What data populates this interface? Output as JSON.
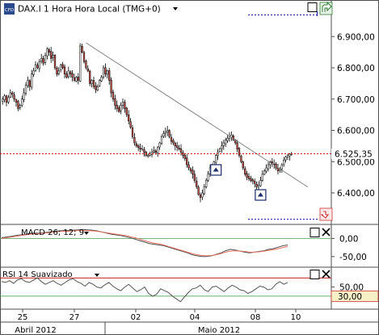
{
  "header": {
    "badge": "CFD",
    "title": "DAX.I 1 Hora Hora Local (TMG+0)",
    "dropdown_icon": "triangle-down-icon"
  },
  "colors": {
    "border": "#4d4d4d",
    "up_candle": "#ffffff",
    "down_candle": "#c0504d",
    "wick": "#000000",
    "price_line": "#cc0000",
    "trendline": "#808080",
    "macd_line": "#4f4f4f",
    "macd_signal": "#e8705f",
    "macd_zero": "#66aa66",
    "rsi_line": "#555555",
    "rsi_upper": "#c00000",
    "rsi_lower": "#339933",
    "label_bg": "#cc3333",
    "watermark": "#2e7d32",
    "axis_text": "#000000"
  },
  "chart_data": [
    {
      "type": "candlestick",
      "panel": "price",
      "title": "DAX.I 1 Hora Hora Local (TMG+0)",
      "ylim": [
        6320,
        6960
      ],
      "yticks": [
        6400,
        6500,
        6600,
        6700,
        6800,
        6900
      ],
      "ytick_labels": [
        "6.400,00",
        "6.500,00",
        "6.600,00",
        "6.700,00",
        "6.800,00",
        "6.900,00"
      ],
      "last_price": 6525.35,
      "last_price_label": "6.525,35",
      "bar_count": 150,
      "closes": [
        6700,
        6710,
        6690,
        6705,
        6720,
        6715,
        6700,
        6690,
        6670,
        6680,
        6700,
        6720,
        6745,
        6760,
        6740,
        6780,
        6790,
        6810,
        6800,
        6820,
        6830,
        6815,
        6840,
        6860,
        6850,
        6830,
        6840,
        6800,
        6780,
        6790,
        6810,
        6800,
        6780,
        6770,
        6790,
        6780,
        6770,
        6760,
        6770,
        6760,
        6870,
        6850,
        6820,
        6800,
        6790,
        6750,
        6760,
        6740,
        6730,
        6740,
        6760,
        6770,
        6800,
        6780,
        6790,
        6760,
        6720,
        6700,
        6680,
        6670,
        6660,
        6680,
        6690,
        6670,
        6650,
        6630,
        6610,
        6580,
        6560,
        6550,
        6545,
        6540,
        6540,
        6530,
        6520,
        6520,
        6525,
        6530,
        6535,
        6530,
        6545,
        6560,
        6580,
        6590,
        6595,
        6600,
        6580,
        6565,
        6560,
        6550,
        6545,
        6540,
        6530,
        6520,
        6510,
        6490,
        6480,
        6470,
        6460,
        6440,
        6420,
        6395,
        6385,
        6400,
        6420,
        6440,
        6460,
        6480,
        6490,
        6500,
        6520,
        6530,
        6540,
        6550,
        6560,
        6570,
        6575,
        6580,
        6585,
        6570,
        6560,
        6540,
        6520,
        6500,
        6480,
        6460,
        6450,
        6445,
        6440,
        6438,
        6430,
        6420,
        6425,
        6440,
        6460,
        6470,
        6480,
        6490,
        6500,
        6495,
        6490,
        6480,
        6470,
        6475,
        6490,
        6505,
        6515,
        6520,
        6524,
        6525.35
      ],
      "trendline": {
        "from": {
          "bar": 43,
          "price": 6880
        },
        "to": {
          "bar": 149,
          "price": 6450
        }
      },
      "signal_markers": [
        {
          "bar": 110,
          "direction": "up"
        },
        {
          "bar": 133,
          "direction": "up"
        }
      ]
    },
    {
      "type": "line",
      "panel": "macd",
      "title": "MACD 26; 12; 9",
      "ylim": [
        -75,
        30
      ],
      "yticks": [
        0,
        -50
      ],
      "ytick_labels": [
        "0,00",
        "-50,00"
      ],
      "series": [
        {
          "name": "MACD",
          "values": [
            2,
            4,
            6,
            8,
            10,
            12,
            14,
            15,
            15,
            16,
            18,
            20,
            21,
            22,
            22,
            23,
            24,
            25,
            24,
            23,
            21,
            18,
            15,
            12,
            10,
            8,
            5,
            2,
            -2,
            -6,
            -10,
            -14,
            -16,
            -18,
            -20,
            -24,
            -28,
            -32,
            -36,
            -40,
            -45,
            -48,
            -50,
            -50,
            -48,
            -44,
            -40,
            -34,
            -30,
            -32,
            -35,
            -38,
            -40,
            -38,
            -36,
            -34,
            -30,
            -28,
            -24,
            -20,
            -18
          ]
        },
        {
          "name": "Signal",
          "values": [
            0,
            2,
            4,
            6,
            8,
            10,
            12,
            13,
            14,
            15,
            16,
            18,
            19,
            20,
            20,
            21,
            22,
            22,
            22,
            21,
            20,
            18,
            16,
            14,
            12,
            10,
            8,
            5,
            2,
            -2,
            -6,
            -10,
            -13,
            -15,
            -18,
            -22,
            -26,
            -30,
            -34,
            -38,
            -42,
            -45,
            -47,
            -48,
            -47,
            -45,
            -42,
            -38,
            -35,
            -34,
            -35,
            -36,
            -38,
            -38,
            -37,
            -35,
            -33,
            -31,
            -28,
            -25,
            -22
          ]
        }
      ]
    },
    {
      "type": "line",
      "panel": "rsi",
      "title": "RSI 14 Suavizado",
      "ylim": [
        5,
        90
      ],
      "yticks": [
        50
      ],
      "ytick_labels": [
        "50,00"
      ],
      "overbought": 70,
      "oversold": 30,
      "oversold_label": "30,00",
      "series": [
        {
          "name": "RSI",
          "values": [
            62,
            60,
            64,
            58,
            66,
            68,
            62,
            60,
            65,
            70,
            62,
            56,
            60,
            64,
            58,
            54,
            60,
            66,
            68,
            62,
            58,
            52,
            60,
            56,
            50,
            48,
            55,
            60,
            52,
            46,
            42,
            50,
            56,
            48,
            40,
            44,
            50,
            36,
            30,
            34,
            46,
            42,
            38,
            30,
            24,
            18,
            28,
            38,
            46,
            48,
            54,
            44,
            40,
            50,
            52,
            46,
            40,
            48,
            54,
            50,
            44,
            42,
            36,
            40,
            46,
            52,
            50,
            44,
            46,
            56,
            62,
            56,
            60
          ]
        }
      ]
    }
  ],
  "x_axis": {
    "tick_labels": [
      "25",
      "27",
      "02",
      "04",
      "08",
      "10"
    ],
    "month_labels": [
      "Abril 2012",
      "Maio 2012"
    ]
  },
  "icons": [
    "floppy-icon",
    "close-x-icon",
    "maximize-icon",
    "expand-arrow-icon"
  ]
}
